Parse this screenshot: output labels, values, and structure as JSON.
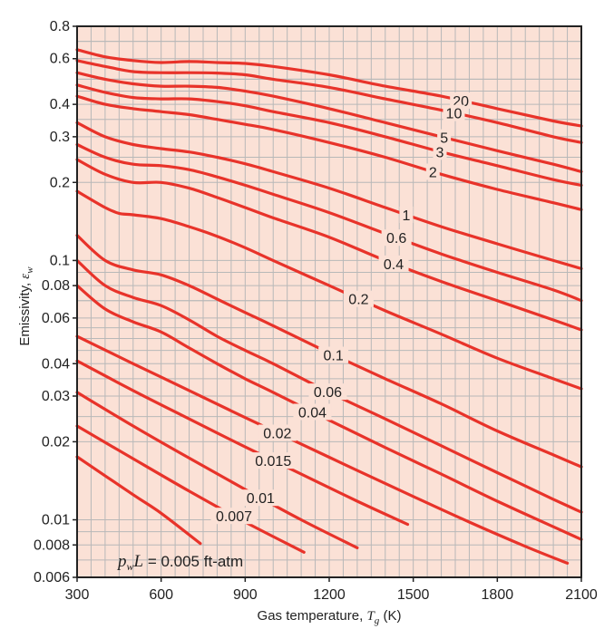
{
  "chart_data": {
    "type": "line",
    "xlabel_prefix": "Gas temperature, ",
    "xlabel_var": "T",
    "xlabel_sub": "g",
    "xlabel_suffix": " (K)",
    "ylabel_prefix": "Emissivity, ",
    "ylabel_var": "ε",
    "ylabel_sub": "w",
    "x_scale": "linear",
    "y_scale": "log",
    "xlim": [
      300,
      2100
    ],
    "ylim": [
      0.006,
      0.8
    ],
    "x_ticks": [
      300,
      600,
      900,
      1200,
      1500,
      1800,
      2100
    ],
    "y_ticks": [
      0.006,
      0.008,
      0.01,
      0.02,
      0.03,
      0.04,
      0.06,
      0.08,
      0.1,
      0.2,
      0.3,
      0.4,
      0.6,
      0.8
    ],
    "y_tick_labels": [
      "0.006",
      "0.008",
      "0.01",
      "0.02",
      "0.03",
      "0.04",
      "0.06",
      "0.08",
      "0.1",
      "0.2",
      "0.3",
      "0.4",
      "0.6",
      "0.8"
    ],
    "grid": true,
    "colors": {
      "curve": "#e8332a",
      "plot_bg": "#fbe1d6",
      "frame": "#222222",
      "grid": "#b8b8b8"
    },
    "annotation": {
      "var": "p",
      "sub": "w",
      "var2": "L",
      "text": " = 0.005 ft-atm"
    },
    "series": [
      {
        "name": "20",
        "label_x": 1670,
        "x": [
          300,
          400,
          500,
          600,
          700,
          800,
          900,
          1000,
          1200,
          1400,
          1600,
          1800,
          2000,
          2100
        ],
        "y": [
          0.65,
          0.61,
          0.59,
          0.58,
          0.585,
          0.58,
          0.575,
          0.56,
          0.52,
          0.47,
          0.43,
          0.385,
          0.345,
          0.33
        ]
      },
      {
        "name": "10",
        "label_x": 1645,
        "x": [
          300,
          400,
          500,
          600,
          700,
          800,
          900,
          1000,
          1200,
          1400,
          1600,
          1800,
          2000,
          2100
        ],
        "y": [
          0.59,
          0.56,
          0.535,
          0.53,
          0.53,
          0.528,
          0.52,
          0.5,
          0.465,
          0.42,
          0.38,
          0.34,
          0.3,
          0.285
        ]
      },
      {
        "name": "5",
        "label_x": 1610,
        "x": [
          300,
          400,
          500,
          600,
          700,
          800,
          900,
          1000,
          1200,
          1400,
          1600,
          1800,
          2000,
          2100
        ],
        "y": [
          0.53,
          0.5,
          0.48,
          0.47,
          0.47,
          0.465,
          0.45,
          0.43,
          0.385,
          0.34,
          0.3,
          0.265,
          0.235,
          0.22
        ]
      },
      {
        "name": "3",
        "label_x": 1595,
        "x": [
          300,
          400,
          500,
          600,
          700,
          800,
          900,
          1000,
          1200,
          1400,
          1600,
          1800,
          2000,
          2100
        ],
        "y": [
          0.475,
          0.445,
          0.425,
          0.42,
          0.42,
          0.41,
          0.395,
          0.375,
          0.34,
          0.3,
          0.262,
          0.232,
          0.205,
          0.195
        ]
      },
      {
        "name": "2",
        "label_x": 1570,
        "x": [
          300,
          400,
          500,
          600,
          700,
          800,
          900,
          1000,
          1200,
          1400,
          1600,
          1800,
          2000,
          2100
        ],
        "y": [
          0.43,
          0.4,
          0.385,
          0.375,
          0.365,
          0.35,
          0.335,
          0.32,
          0.285,
          0.25,
          0.215,
          0.188,
          0.167,
          0.157
        ]
      },
      {
        "name": "1",
        "label_x": 1475,
        "x": [
          300,
          400,
          500,
          600,
          700,
          800,
          900,
          1000,
          1200,
          1400,
          1600,
          1800,
          2000,
          2100
        ],
        "y": [
          0.34,
          0.3,
          0.28,
          0.27,
          0.262,
          0.25,
          0.236,
          0.22,
          0.19,
          0.16,
          0.135,
          0.116,
          0.1,
          0.093
        ]
      },
      {
        "name": "0.6",
        "label_x": 1440,
        "x": [
          300,
          400,
          500,
          600,
          700,
          800,
          900,
          1000,
          1200,
          1400,
          1600,
          1800,
          2000,
          2100
        ],
        "y": [
          0.28,
          0.25,
          0.235,
          0.232,
          0.224,
          0.21,
          0.195,
          0.18,
          0.153,
          0.127,
          0.106,
          0.09,
          0.077,
          0.07
        ]
      },
      {
        "name": "0.4",
        "label_x": 1430,
        "x": [
          300,
          400,
          500,
          600,
          700,
          800,
          900,
          1000,
          1200,
          1400,
          1600,
          1800,
          2000,
          2100
        ],
        "y": [
          0.245,
          0.215,
          0.2,
          0.2,
          0.19,
          0.175,
          0.16,
          0.146,
          0.123,
          0.1,
          0.083,
          0.07,
          0.059,
          0.054
        ]
      },
      {
        "name": "0.2",
        "label_x": 1305,
        "x": [
          300,
          400,
          450,
          500,
          600,
          700,
          800,
          900,
          1000,
          1200,
          1400,
          1600,
          1800,
          2000,
          2100
        ],
        "y": [
          0.185,
          0.16,
          0.152,
          0.15,
          0.145,
          0.135,
          0.124,
          0.112,
          0.1,
          0.08,
          0.064,
          0.052,
          0.042,
          0.035,
          0.032
        ]
      },
      {
        "name": "0.1",
        "label_x": 1215,
        "x": [
          300,
          400,
          500,
          600,
          700,
          800,
          900,
          1000,
          1200,
          1400,
          1600,
          1800,
          2000,
          2100
        ],
        "y": [
          0.125,
          0.1,
          0.092,
          0.088,
          0.08,
          0.071,
          0.063,
          0.056,
          0.044,
          0.035,
          0.028,
          0.022,
          0.0178,
          0.016
        ]
      },
      {
        "name": "0.06",
        "label_x": 1195,
        "x": [
          300,
          400,
          500,
          600,
          700,
          800,
          900,
          1000,
          1200,
          1400,
          1600,
          1800,
          2000,
          2100
        ],
        "y": [
          0.1,
          0.08,
          0.072,
          0.067,
          0.059,
          0.051,
          0.045,
          0.04,
          0.031,
          0.0245,
          0.0193,
          0.0152,
          0.012,
          0.0107
        ]
      },
      {
        "name": "0.04",
        "label_x": 1140,
        "x": [
          300,
          400,
          500,
          600,
          700,
          800,
          900,
          1000,
          1200,
          1400,
          1600,
          1800,
          2000,
          2100
        ],
        "y": [
          0.08,
          0.065,
          0.058,
          0.053,
          0.046,
          0.04,
          0.035,
          0.031,
          0.0242,
          0.019,
          0.015,
          0.0118,
          0.0094,
          0.0084
        ]
      },
      {
        "name": "0.02",
        "label_x": 1015,
        "x": [
          300,
          500,
          700,
          900,
          1100,
          1300,
          1500,
          1700,
          1900,
          2050
        ],
        "y": [
          0.051,
          0.04,
          0.0315,
          0.0248,
          0.0196,
          0.0155,
          0.0123,
          0.0098,
          0.0079,
          0.0068
        ]
      },
      {
        "name": "0.015",
        "label_x": 1000,
        "x": [
          300,
          500,
          700,
          900,
          1100,
          1300,
          1480
        ],
        "y": [
          0.041,
          0.0315,
          0.0245,
          0.0191,
          0.015,
          0.0118,
          0.0096
        ]
      },
      {
        "name": "0.01",
        "label_x": 955,
        "x": [
          300,
          500,
          700,
          900,
          1100,
          1300
        ],
        "y": [
          0.031,
          0.023,
          0.0173,
          0.0131,
          0.01,
          0.0078
        ]
      },
      {
        "name": "0.007",
        "label_x": 860,
        "x": [
          300,
          500,
          700,
          900,
          1110
        ],
        "y": [
          0.023,
          0.0172,
          0.0129,
          0.0098,
          0.0075
        ]
      },
      {
        "name": "",
        "label_x": null,
        "x": [
          300,
          500,
          600,
          740
        ],
        "y": [
          0.0175,
          0.0125,
          0.0106,
          0.0081
        ]
      }
    ]
  }
}
